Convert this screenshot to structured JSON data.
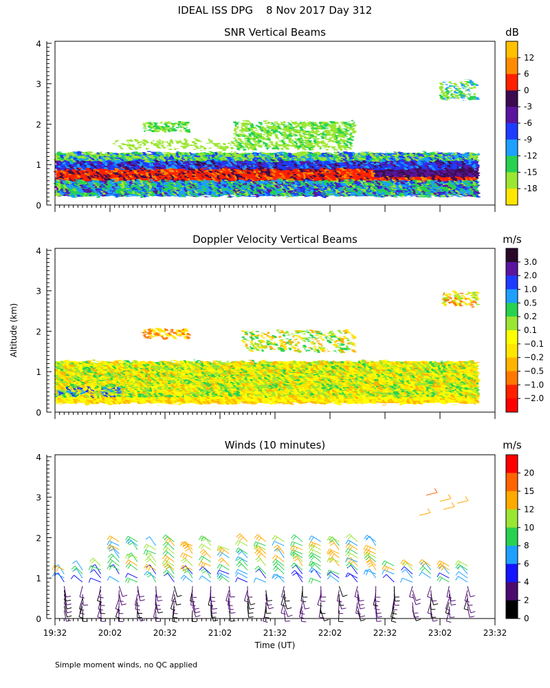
{
  "figure": {
    "title": "IDEAL ISS DPG    8 Nov 2017 Day 312",
    "shared_ylabel": "Altitude (km)",
    "xlabel": "Time (UT)",
    "footnote": "Simple moment winds, no QC applied",
    "x_ticks": [
      "19:32",
      "20:02",
      "20:32",
      "21:02",
      "21:32",
      "22:02",
      "22:32",
      "23:02",
      "23:32"
    ],
    "y_ticks": [
      "0",
      "1",
      "2",
      "3",
      "4"
    ]
  },
  "chart_data": [
    {
      "type": "heatmap",
      "title": "SNR Vertical Beams",
      "xlim": [
        "19:32",
        "23:32"
      ],
      "ylim": [
        0,
        4
      ],
      "colorbar": {
        "unit": "dB",
        "labels": [
          "12",
          "6",
          "0",
          "-3",
          "-6",
          "-9",
          "-12",
          "-15",
          "-18"
        ],
        "colors": [
          "#ffc000",
          "#ff8c00",
          "#ff2000",
          "#3c0a50",
          "#5a14a0",
          "#1e3cff",
          "#1ea0ff",
          "#28d250",
          "#9be632",
          "#ffe600"
        ]
      },
      "regions": [
        {
          "t": [
            0.0,
            0.96
          ],
          "alt": [
            0.2,
            1.3
          ],
          "note": "main echo layer"
        },
        {
          "t": [
            0.0,
            0.96
          ],
          "alt": [
            0.65,
            0.9
          ],
          "note": "strong red band"
        },
        {
          "t": [
            0.4,
            0.68
          ],
          "alt": [
            1.4,
            2.1
          ],
          "note": "elevated echo"
        },
        {
          "t": [
            0.2,
            0.3
          ],
          "alt": [
            1.8,
            2.05
          ],
          "note": "elevated echo"
        },
        {
          "t": [
            0.88,
            0.97
          ],
          "alt": [
            2.6,
            3.1
          ],
          "note": "upper echo"
        }
      ]
    },
    {
      "type": "heatmap",
      "title": "Doppler Velocity Vertical Beams",
      "xlim": [
        "19:32",
        "23:32"
      ],
      "ylim": [
        0,
        4
      ],
      "colorbar": {
        "unit": "m/s",
        "labels": [
          "3.0",
          "2.0",
          "1.0",
          "0.5",
          "0.2",
          "0.1",
          "−0.1",
          "−0.2",
          "−0.5",
          "−1.0",
          "−2.0"
        ],
        "colors": [
          "#280a28",
          "#5a14a0",
          "#1e3cff",
          "#1ea0ff",
          "#28d250",
          "#9be632",
          "#ffff00",
          "#ffe600",
          "#ffb400",
          "#ff7800",
          "#ff2000",
          "#ff0000"
        ]
      },
      "regions": [
        {
          "t": [
            0.0,
            0.96
          ],
          "alt": [
            0.2,
            1.25
          ],
          "note": "mostly yellow/green mixed"
        },
        {
          "t": [
            0.4,
            0.68
          ],
          "alt": [
            1.5,
            2.0
          ],
          "note": "sparse echo"
        },
        {
          "t": [
            0.88,
            0.97
          ],
          "alt": [
            2.6,
            2.95
          ],
          "note": "upper echo"
        }
      ]
    },
    {
      "type": "scatter",
      "title": "Winds (10 minutes)",
      "xlim": [
        "19:32",
        "23:32"
      ],
      "ylim": [
        0,
        4
      ],
      "colorbar": {
        "unit": "m/s",
        "labels": [
          "20",
          "15",
          "12",
          "10",
          "8",
          "6",
          "4",
          "2",
          "0"
        ],
        "colors": [
          "#ff0000",
          "#ff6400",
          "#ffaa00",
          "#9be632",
          "#28d250",
          "#1ea0ff",
          "#1414ff",
          "#4a0a6e",
          "#000000"
        ]
      },
      "wind_columns": [
        "19:37",
        "19:47",
        "19:57",
        "20:07",
        "20:17",
        "20:27",
        "20:37",
        "20:47",
        "20:57",
        "21:07",
        "21:17",
        "21:27",
        "21:37",
        "21:47",
        "21:57",
        "22:07",
        "22:17",
        "22:27",
        "22:37",
        "22:47",
        "22:57",
        "23:07",
        "23:17"
      ]
    }
  ]
}
